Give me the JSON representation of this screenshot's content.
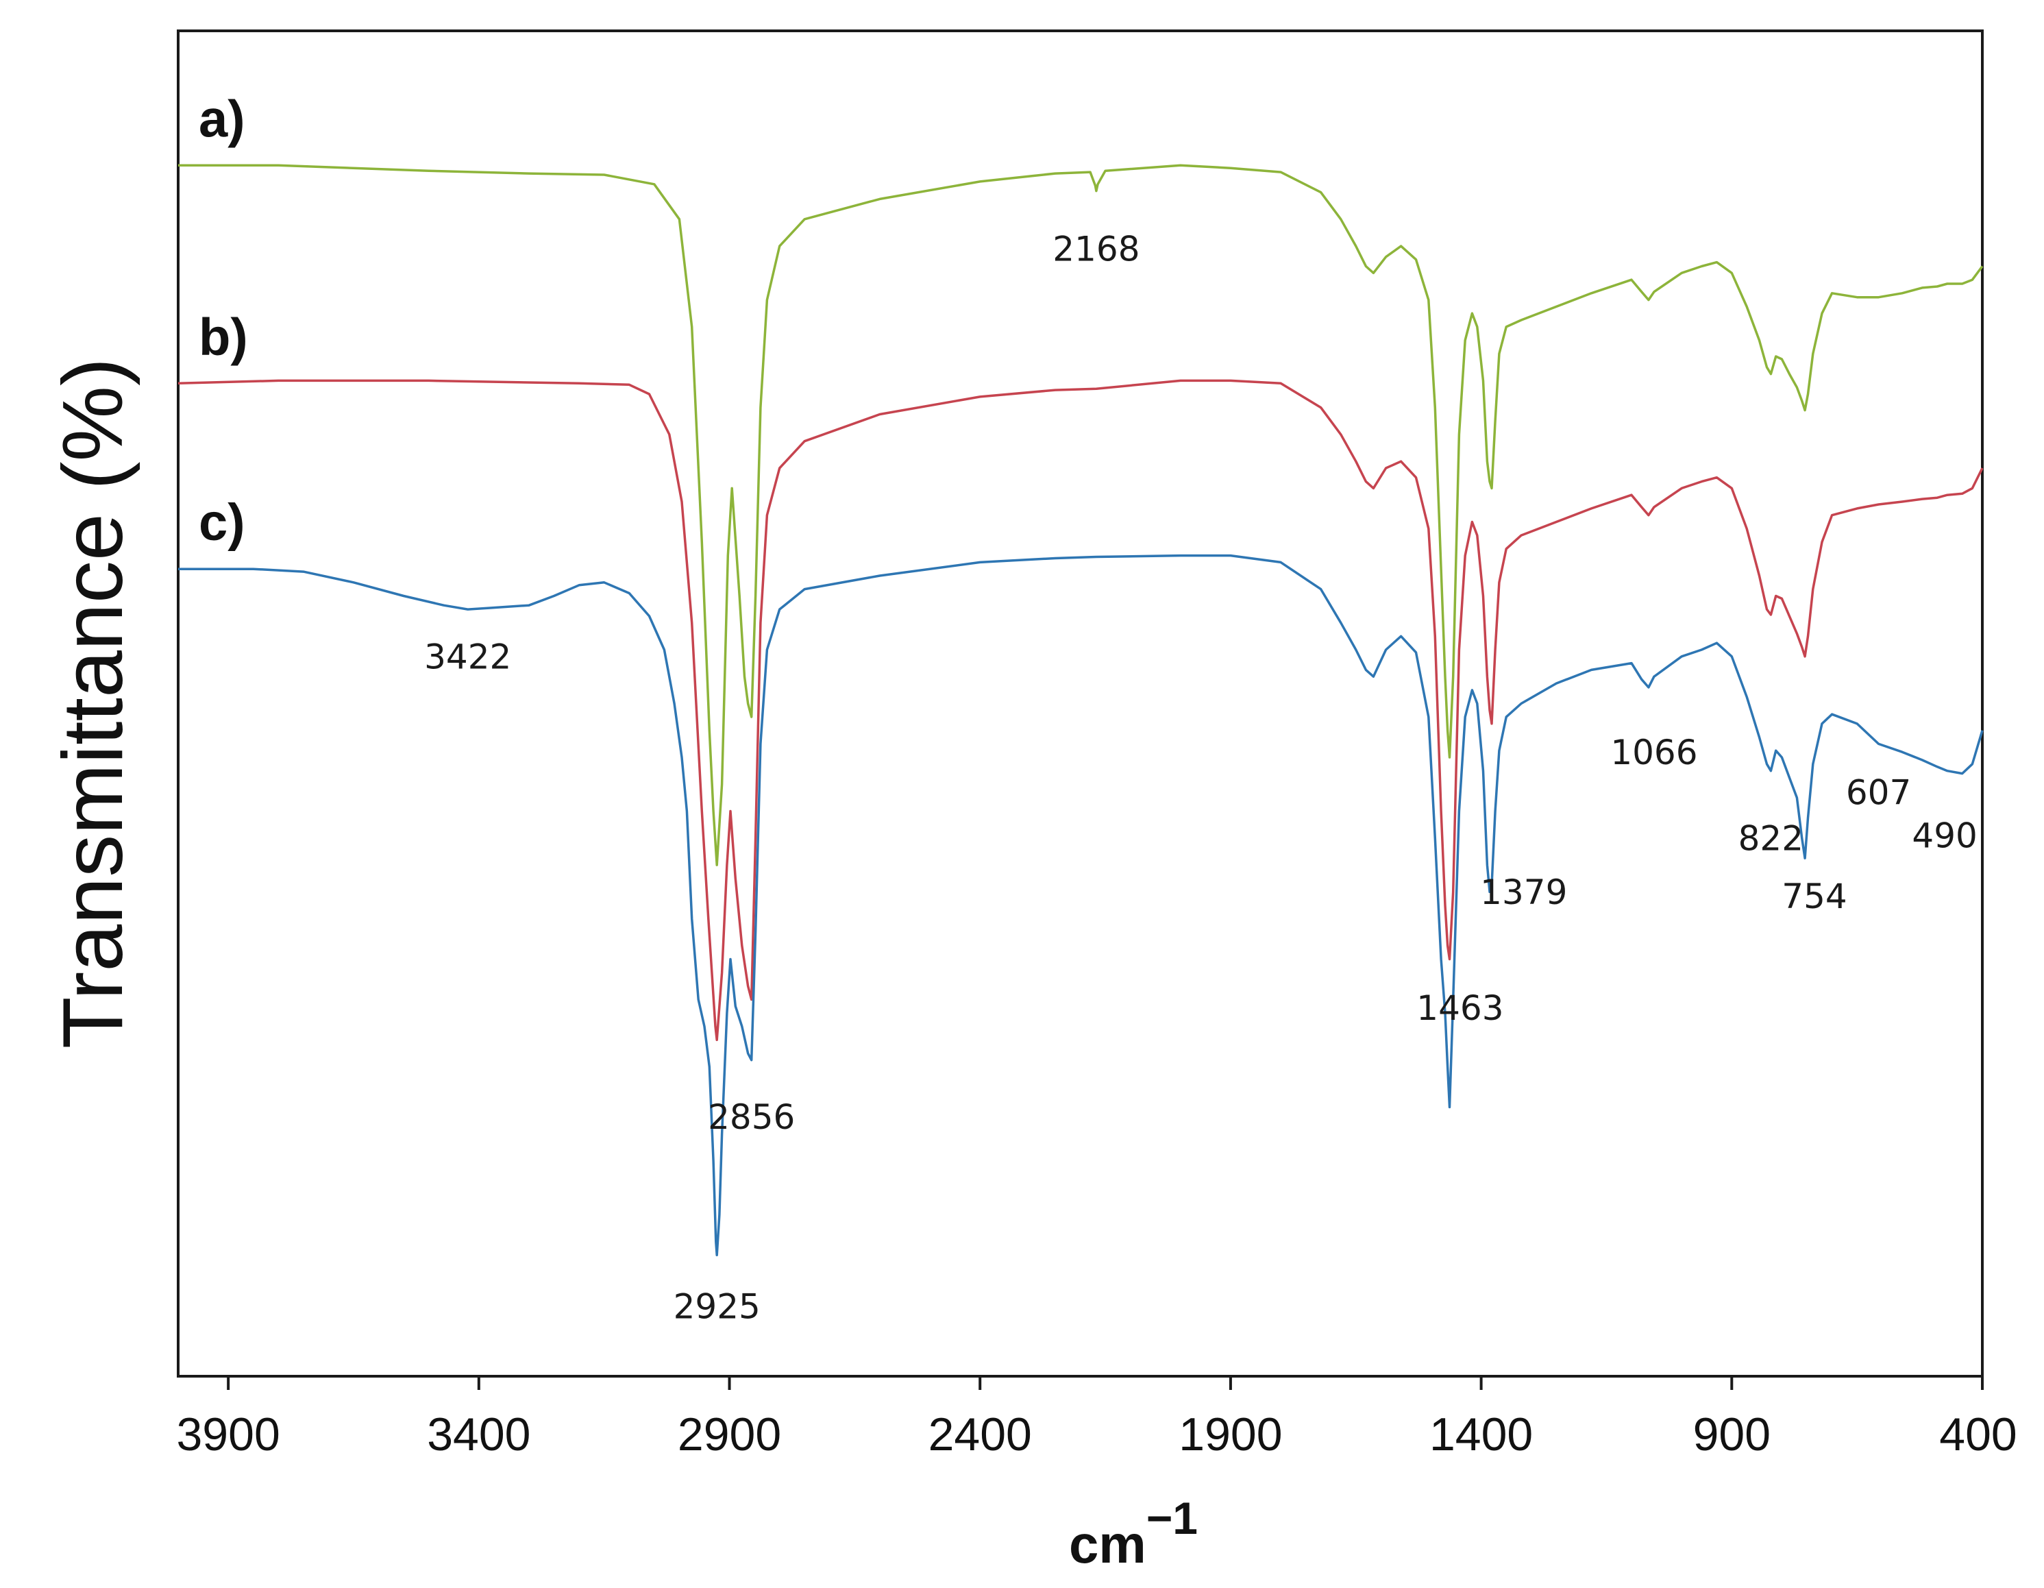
{
  "chart_data": {
    "type": "line",
    "title": "",
    "xlabel": "cm",
    "xlabel_exponent": "−1",
    "ylabel": "Transmittance (%)",
    "xlim": [
      4000,
      400
    ],
    "ylim": [
      0,
      100
    ],
    "x_ticks": [
      3900,
      3400,
      2900,
      2400,
      1900,
      1400,
      900,
      400
    ],
    "colors": {
      "a": "#8db43a",
      "b": "#c6444f",
      "c": "#2e76b3"
    },
    "series": [
      {
        "key": "a",
        "name": "a)",
        "points": [
          [
            4000,
            90
          ],
          [
            3800,
            90
          ],
          [
            3500,
            89.6
          ],
          [
            3300,
            89.4
          ],
          [
            3150,
            89.3
          ],
          [
            3050,
            88.6
          ],
          [
            3000,
            86
          ],
          [
            2975,
            78
          ],
          [
            2955,
            62
          ],
          [
            2940,
            48
          ],
          [
            2932,
            42
          ],
          [
            2925,
            38
          ],
          [
            2915,
            44
          ],
          [
            2903,
            61
          ],
          [
            2895,
            66
          ],
          [
            2880,
            58
          ],
          [
            2870,
            52
          ],
          [
            2863,
            50
          ],
          [
            2856,
            49
          ],
          [
            2848,
            58
          ],
          [
            2838,
            72
          ],
          [
            2825,
            80
          ],
          [
            2800,
            84
          ],
          [
            2750,
            86
          ],
          [
            2600,
            87.5
          ],
          [
            2400,
            88.8
          ],
          [
            2250,
            89.4
          ],
          [
            2180,
            89.5
          ],
          [
            2170,
            88.5
          ],
          [
            2168,
            88.1
          ],
          [
            2165,
            88.6
          ],
          [
            2150,
            89.6
          ],
          [
            2000,
            90
          ],
          [
            1900,
            89.8
          ],
          [
            1800,
            89.5
          ],
          [
            1720,
            88
          ],
          [
            1680,
            86
          ],
          [
            1650,
            84
          ],
          [
            1630,
            82.5
          ],
          [
            1615,
            82
          ],
          [
            1590,
            83.2
          ],
          [
            1560,
            84
          ],
          [
            1530,
            83
          ],
          [
            1505,
            80
          ],
          [
            1492,
            72
          ],
          [
            1480,
            60
          ],
          [
            1472,
            52
          ],
          [
            1467,
            48
          ],
          [
            1463,
            46
          ],
          [
            1456,
            52
          ],
          [
            1444,
            70
          ],
          [
            1432,
            77
          ],
          [
            1418,
            79
          ],
          [
            1408,
            78
          ],
          [
            1396,
            74
          ],
          [
            1388,
            68
          ],
          [
            1383,
            66.5
          ],
          [
            1379,
            66
          ],
          [
            1372,
            71
          ],
          [
            1364,
            76
          ],
          [
            1350,
            78
          ],
          [
            1320,
            78.5
          ],
          [
            1250,
            79.5
          ],
          [
            1180,
            80.5
          ],
          [
            1100,
            81.5
          ],
          [
            1080,
            80.6
          ],
          [
            1066,
            80
          ],
          [
            1055,
            80.6
          ],
          [
            1000,
            82
          ],
          [
            960,
            82.5
          ],
          [
            930,
            82.8
          ],
          [
            900,
            82
          ],
          [
            870,
            79.5
          ],
          [
            845,
            77
          ],
          [
            830,
            75
          ],
          [
            822,
            74.5
          ],
          [
            812,
            75.8
          ],
          [
            800,
            75.6
          ],
          [
            785,
            74.5
          ],
          [
            770,
            73.5
          ],
          [
            760,
            72.5
          ],
          [
            754,
            71.8
          ],
          [
            748,
            73
          ],
          [
            738,
            76
          ],
          [
            720,
            79
          ],
          [
            700,
            80.5
          ],
          [
            650,
            80.2
          ],
          [
            607,
            80.2
          ],
          [
            560,
            80.5
          ],
          [
            520,
            80.9
          ],
          [
            490,
            81
          ],
          [
            470,
            81.2
          ],
          [
            440,
            81.2
          ],
          [
            420,
            81.5
          ],
          [
            400,
            82.5
          ]
        ]
      },
      {
        "key": "b",
        "name": "b)",
        "points": [
          [
            4000,
            73.8
          ],
          [
            3800,
            74
          ],
          [
            3500,
            74
          ],
          [
            3200,
            73.8
          ],
          [
            3100,
            73.7
          ],
          [
            3060,
            73
          ],
          [
            3020,
            70
          ],
          [
            2995,
            65
          ],
          [
            2975,
            56
          ],
          [
            2955,
            42
          ],
          [
            2942,
            34
          ],
          [
            2935,
            30
          ],
          [
            2928,
            26
          ],
          [
            2925,
            25
          ],
          [
            2915,
            30
          ],
          [
            2905,
            38
          ],
          [
            2898,
            42
          ],
          [
            2888,
            37
          ],
          [
            2875,
            32
          ],
          [
            2863,
            29
          ],
          [
            2856,
            28
          ],
          [
            2848,
            40
          ],
          [
            2838,
            56
          ],
          [
            2825,
            64
          ],
          [
            2800,
            67.5
          ],
          [
            2750,
            69.5
          ],
          [
            2600,
            71.5
          ],
          [
            2400,
            72.8
          ],
          [
            2250,
            73.3
          ],
          [
            2168,
            73.4
          ],
          [
            2000,
            74
          ],
          [
            1900,
            74
          ],
          [
            1800,
            73.8
          ],
          [
            1720,
            72
          ],
          [
            1680,
            70
          ],
          [
            1650,
            68
          ],
          [
            1630,
            66.5
          ],
          [
            1615,
            66
          ],
          [
            1590,
            67.5
          ],
          [
            1560,
            68
          ],
          [
            1530,
            66.8
          ],
          [
            1505,
            63
          ],
          [
            1492,
            55
          ],
          [
            1480,
            42
          ],
          [
            1472,
            35
          ],
          [
            1467,
            32
          ],
          [
            1463,
            31
          ],
          [
            1456,
            36
          ],
          [
            1444,
            54
          ],
          [
            1432,
            61
          ],
          [
            1418,
            63.5
          ],
          [
            1408,
            62.5
          ],
          [
            1396,
            58
          ],
          [
            1388,
            52
          ],
          [
            1383,
            49.5
          ],
          [
            1379,
            48.5
          ],
          [
            1372,
            54
          ],
          [
            1364,
            59
          ],
          [
            1350,
            61.5
          ],
          [
            1320,
            62.5
          ],
          [
            1250,
            63.5
          ],
          [
            1180,
            64.5
          ],
          [
            1100,
            65.5
          ],
          [
            1080,
            64.6
          ],
          [
            1066,
            64
          ],
          [
            1055,
            64.6
          ],
          [
            1000,
            66
          ],
          [
            960,
            66.5
          ],
          [
            930,
            66.8
          ],
          [
            900,
            66
          ],
          [
            870,
            63
          ],
          [
            845,
            59.5
          ],
          [
            830,
            57
          ],
          [
            822,
            56.6
          ],
          [
            812,
            58
          ],
          [
            800,
            57.8
          ],
          [
            785,
            56.5
          ],
          [
            770,
            55.2
          ],
          [
            760,
            54.2
          ],
          [
            754,
            53.5
          ],
          [
            748,
            55
          ],
          [
            738,
            58.5
          ],
          [
            720,
            62
          ],
          [
            700,
            64
          ],
          [
            650,
            64.5
          ],
          [
            607,
            64.8
          ],
          [
            560,
            65
          ],
          [
            520,
            65.2
          ],
          [
            490,
            65.3
          ],
          [
            470,
            65.5
          ],
          [
            440,
            65.6
          ],
          [
            420,
            66
          ],
          [
            400,
            67.5
          ]
        ]
      },
      {
        "key": "c",
        "name": "c)",
        "points": [
          [
            4000,
            60
          ],
          [
            3850,
            60
          ],
          [
            3750,
            59.8
          ],
          [
            3650,
            59
          ],
          [
            3550,
            58
          ],
          [
            3470,
            57.3
          ],
          [
            3422,
            57
          ],
          [
            3380,
            57.1
          ],
          [
            3300,
            57.3
          ],
          [
            3250,
            58
          ],
          [
            3200,
            58.8
          ],
          [
            3150,
            59
          ],
          [
            3100,
            58.2
          ],
          [
            3060,
            56.5
          ],
          [
            3030,
            54
          ],
          [
            3010,
            50
          ],
          [
            2995,
            46
          ],
          [
            2985,
            42
          ],
          [
            2975,
            34
          ],
          [
            2962,
            28
          ],
          [
            2950,
            26
          ],
          [
            2940,
            23
          ],
          [
            2932,
            16
          ],
          [
            2927,
            10
          ],
          [
            2925,
            9
          ],
          [
            2920,
            12
          ],
          [
            2915,
            18
          ],
          [
            2905,
            27
          ],
          [
            2898,
            31
          ],
          [
            2888,
            27.5
          ],
          [
            2875,
            26
          ],
          [
            2863,
            24
          ],
          [
            2856,
            23.5
          ],
          [
            2848,
            33
          ],
          [
            2838,
            47
          ],
          [
            2825,
            54
          ],
          [
            2800,
            57
          ],
          [
            2750,
            58.5
          ],
          [
            2600,
            59.5
          ],
          [
            2400,
            60.5
          ],
          [
            2250,
            60.8
          ],
          [
            2168,
            60.9
          ],
          [
            2000,
            61
          ],
          [
            1900,
            61
          ],
          [
            1800,
            60.5
          ],
          [
            1720,
            58.5
          ],
          [
            1680,
            56
          ],
          [
            1650,
            54
          ],
          [
            1630,
            52.5
          ],
          [
            1615,
            52
          ],
          [
            1590,
            54
          ],
          [
            1560,
            55
          ],
          [
            1530,
            53.8
          ],
          [
            1505,
            49
          ],
          [
            1492,
            40
          ],
          [
            1480,
            31
          ],
          [
            1472,
            27
          ],
          [
            1467,
            23
          ],
          [
            1463,
            20
          ],
          [
            1456,
            28
          ],
          [
            1444,
            42
          ],
          [
            1432,
            49
          ],
          [
            1418,
            51
          ],
          [
            1408,
            50
          ],
          [
            1396,
            45
          ],
          [
            1388,
            38
          ],
          [
            1383,
            36
          ],
          [
            1379,
            36.5
          ],
          [
            1372,
            42
          ],
          [
            1364,
            46.5
          ],
          [
            1350,
            49
          ],
          [
            1320,
            50
          ],
          [
            1250,
            51.5
          ],
          [
            1180,
            52.5
          ],
          [
            1100,
            53
          ],
          [
            1080,
            51.8
          ],
          [
            1066,
            51.2
          ],
          [
            1055,
            52
          ],
          [
            1000,
            53.5
          ],
          [
            960,
            54
          ],
          [
            930,
            54.5
          ],
          [
            900,
            53.5
          ],
          [
            870,
            50.5
          ],
          [
            845,
            47.5
          ],
          [
            830,
            45.5
          ],
          [
            822,
            45
          ],
          [
            812,
            46.5
          ],
          [
            800,
            46
          ],
          [
            785,
            44.5
          ],
          [
            770,
            43
          ],
          [
            760,
            40
          ],
          [
            754,
            38.5
          ],
          [
            748,
            41.5
          ],
          [
            738,
            45.5
          ],
          [
            720,
            48.5
          ],
          [
            700,
            49.2
          ],
          [
            650,
            48.5
          ],
          [
            607,
            47
          ],
          [
            560,
            46.4
          ],
          [
            520,
            45.8
          ],
          [
            490,
            45.3
          ],
          [
            470,
            45
          ],
          [
            440,
            44.8
          ],
          [
            420,
            45.5
          ],
          [
            400,
            48
          ]
        ]
      }
    ],
    "annotations": [
      {
        "text": "2168",
        "series": "a",
        "x": 2168,
        "y": 82.9
      },
      {
        "text": "3422",
        "series": "c",
        "x": 3422,
        "y": 52.6
      },
      {
        "text": "2925",
        "series": "c",
        "x": 2925,
        "y": 4.3
      },
      {
        "text": "2856",
        "series": "c",
        "x": 2856,
        "y": 18.4
      },
      {
        "text": "1463",
        "series": "c",
        "x": 1442,
        "y": 26.5
      },
      {
        "text": "1379",
        "series": "c",
        "x": 1315,
        "y": 35.1
      },
      {
        "text": "1066",
        "series": "c",
        "x": 1055,
        "y": 45.5
      },
      {
        "text": "822",
        "series": "c",
        "x": 822,
        "y": 39.1
      },
      {
        "text": "754",
        "series": "c",
        "x": 735,
        "y": 34.8
      },
      {
        "text": "607",
        "series": "c",
        "x": 607,
        "y": 42.5
      },
      {
        "text": "490",
        "series": "c",
        "x": 475,
        "y": 39.3
      }
    ]
  }
}
